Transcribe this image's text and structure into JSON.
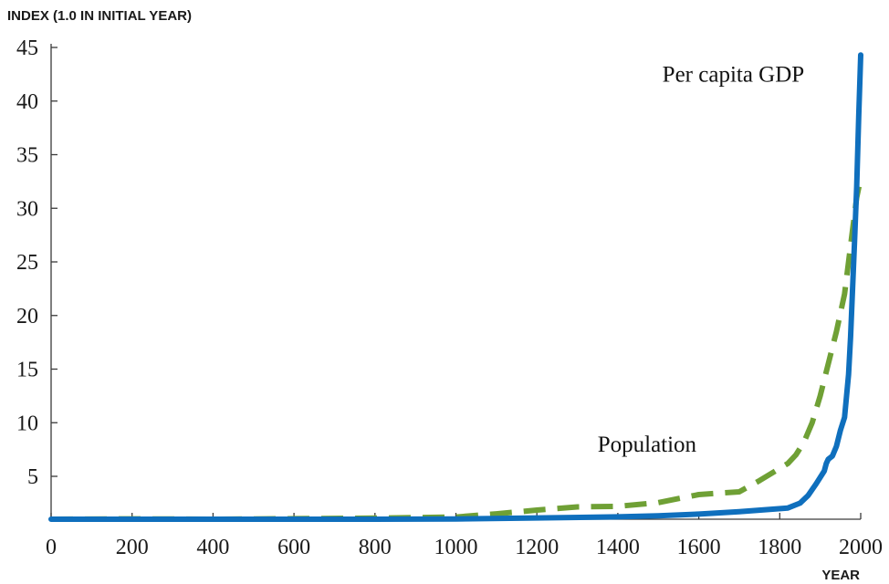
{
  "chart_data": {
    "type": "line",
    "title": "",
    "ylabel": "INDEX (1.0 IN INITIAL YEAR)",
    "xlabel": "YEAR",
    "xlim": [
      0,
      2000
    ],
    "ylim": [
      1,
      45
    ],
    "x_ticks": [
      0,
      200,
      400,
      600,
      800,
      1000,
      1200,
      1400,
      1600,
      1800,
      2000
    ],
    "y_ticks": [
      5,
      10,
      15,
      20,
      25,
      30,
      35,
      40,
      45
    ],
    "grid": false,
    "legend": "none",
    "series": [
      {
        "name": "Per capita GDP",
        "color": "#0f6fbd",
        "style": "solid",
        "points": [
          [
            0,
            1.0
          ],
          [
            200,
            1.0
          ],
          [
            400,
            1.0
          ],
          [
            600,
            1.0
          ],
          [
            800,
            1.0
          ],
          [
            1000,
            1.02
          ],
          [
            1200,
            1.12
          ],
          [
            1400,
            1.22
          ],
          [
            1500,
            1.32
          ],
          [
            1600,
            1.48
          ],
          [
            1700,
            1.7
          ],
          [
            1820,
            2.05
          ],
          [
            1850,
            2.5
          ],
          [
            1870,
            3.2
          ],
          [
            1890,
            4.3
          ],
          [
            1910,
            5.5
          ],
          [
            1915,
            6.2
          ],
          [
            1920,
            6.6
          ],
          [
            1930,
            6.9
          ],
          [
            1940,
            7.8
          ],
          [
            1950,
            9.3
          ],
          [
            1960,
            10.5
          ],
          [
            1965,
            12.5
          ],
          [
            1970,
            14.5
          ],
          [
            1975,
            18.0
          ],
          [
            1980,
            22.5
          ],
          [
            1985,
            27.0
          ],
          [
            1990,
            32.0
          ],
          [
            1995,
            38.5
          ],
          [
            2000,
            44.3
          ]
        ]
      },
      {
        "name": "Population",
        "color": "#6fa035",
        "style": "dashed",
        "points": [
          [
            0,
            1.0
          ],
          [
            200,
            1.03
          ],
          [
            400,
            1.0
          ],
          [
            600,
            1.05
          ],
          [
            800,
            1.1
          ],
          [
            1000,
            1.2
          ],
          [
            1100,
            1.5
          ],
          [
            1200,
            1.85
          ],
          [
            1300,
            2.15
          ],
          [
            1400,
            2.2
          ],
          [
            1500,
            2.55
          ],
          [
            1600,
            3.3
          ],
          [
            1700,
            3.55
          ],
          [
            1750,
            4.6
          ],
          [
            1820,
            6.2
          ],
          [
            1840,
            7.0
          ],
          [
            1860,
            8.2
          ],
          [
            1880,
            10.0
          ],
          [
            1900,
            12.5
          ],
          [
            1920,
            15.5
          ],
          [
            1940,
            18.5
          ],
          [
            1960,
            22.0
          ],
          [
            1970,
            25.0
          ],
          [
            1980,
            28.0
          ],
          [
            1990,
            31.0
          ],
          [
            2000,
            32.8
          ]
        ]
      }
    ],
    "annotations": [
      {
        "text": "Per capita GDP",
        "x": 1510,
        "y": 41.8
      },
      {
        "text": "Population",
        "x": 1350,
        "y": 7.3
      }
    ]
  }
}
